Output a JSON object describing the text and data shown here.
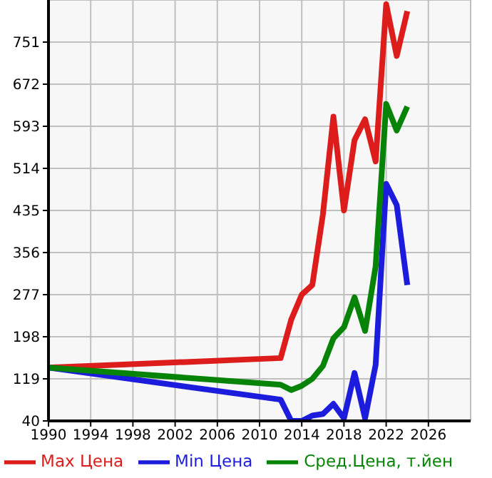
{
  "chart_data": {
    "type": "line",
    "x": [
      1990,
      2012,
      2013,
      2014,
      2015,
      2016,
      2017,
      2018,
      2019,
      2020,
      2021,
      2022,
      2023,
      2024
    ],
    "series": [
      {
        "name": "Max Цена",
        "color": "#dd1c1c",
        "values": [
          140,
          158,
          230,
          277,
          295,
          427,
          611,
          435,
          567,
          606,
          527,
          822,
          725,
          809
        ]
      },
      {
        "name": "Min Цена",
        "color": "#1c1cdd",
        "values": [
          140,
          80,
          40,
          40,
          50,
          53,
          72,
          45,
          130,
          45,
          145,
          485,
          445,
          295
        ]
      },
      {
        "name": "Сред.Цена, т.йен",
        "color": "#078407",
        "values": [
          140,
          108,
          98,
          106,
          119,
          143,
          195,
          216,
          272,
          209,
          330,
          635,
          585,
          630
        ]
      }
    ],
    "xlim": [
      1990,
      2030
    ],
    "xticks": [
      1990,
      1994,
      1998,
      2002,
      2006,
      2010,
      2014,
      2018,
      2022,
      2026
    ],
    "ylim": [
      40,
      830
    ],
    "yticks": [
      40,
      119,
      198,
      277,
      356,
      435,
      514,
      593,
      672,
      751
    ],
    "grid": true,
    "legend": "bottom",
    "marker": "none",
    "line_style": "solid"
  }
}
